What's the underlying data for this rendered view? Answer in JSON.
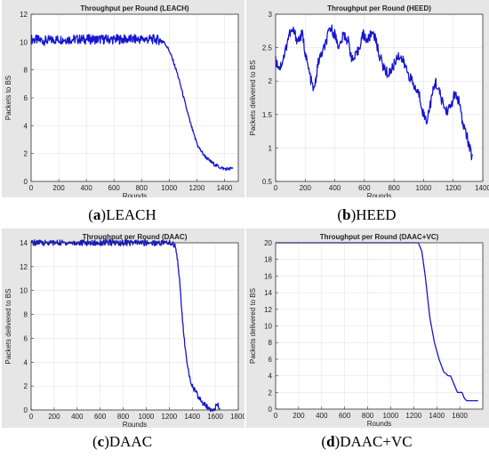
{
  "charts": [
    {
      "type": "line",
      "title": "Throughput per Round (LEACH)",
      "xlabel": "Rounds",
      "ylabel": "Packets to BS",
      "xlim": [
        0,
        1500
      ],
      "ylim": [
        0,
        12
      ],
      "xticks": [
        0,
        200,
        400,
        600,
        800,
        1000,
        1200,
        1400
      ],
      "yticks": [
        0,
        2,
        4,
        6,
        8,
        10,
        12
      ],
      "grid": true,
      "line_color": "#1515d0",
      "caption_letter": "a",
      "caption_text": "LEACH",
      "series_keypoints": [
        [
          0,
          10.2
        ],
        [
          100,
          10.1
        ],
        [
          200,
          10.2
        ],
        [
          300,
          10.2
        ],
        [
          400,
          10.2
        ],
        [
          500,
          10.2
        ],
        [
          600,
          10.2
        ],
        [
          700,
          10.2
        ],
        [
          800,
          10.2
        ],
        [
          900,
          10.2
        ],
        [
          950,
          10.1
        ],
        [
          970,
          9.9
        ],
        [
          1000,
          9.4
        ],
        [
          1030,
          8.6
        ],
        [
          1060,
          7.7
        ],
        [
          1090,
          6.6
        ],
        [
          1120,
          5.4
        ],
        [
          1150,
          4.3
        ],
        [
          1180,
          3.3
        ],
        [
          1210,
          2.5
        ],
        [
          1250,
          1.9
        ],
        [
          1290,
          1.5
        ],
        [
          1330,
          1.2
        ],
        [
          1370,
          1.0
        ],
        [
          1400,
          0.9
        ],
        [
          1440,
          0.9
        ],
        [
          1460,
          0.95
        ]
      ],
      "noise_until": 960,
      "noise_amp": 0.35,
      "noise_amp_after": 0.12
    },
    {
      "type": "line",
      "title": "Throughput per Round (HEED)",
      "xlabel": "Rounds",
      "ylabel": "Packets delivered to BS",
      "xlim": [
        0,
        1400
      ],
      "ylim": [
        0.5,
        3
      ],
      "xticks": [
        0,
        200,
        400,
        600,
        800,
        1000,
        1200,
        1400
      ],
      "yticks": [
        0.5,
        1,
        1.5,
        2,
        2.5,
        3
      ],
      "grid": true,
      "line_color": "#1515d0",
      "caption_letter": "b",
      "caption_text": "HEED",
      "series_keypoints": [
        [
          0,
          2.3
        ],
        [
          30,
          2.2
        ],
        [
          60,
          2.4
        ],
        [
          90,
          2.7
        ],
        [
          120,
          2.75
        ],
        [
          150,
          2.6
        ],
        [
          180,
          2.7
        ],
        [
          210,
          2.3
        ],
        [
          240,
          2.0
        ],
        [
          260,
          1.85
        ],
        [
          290,
          2.3
        ],
        [
          330,
          2.5
        ],
        [
          370,
          2.8
        ],
        [
          400,
          2.7
        ],
        [
          430,
          2.5
        ],
        [
          460,
          2.7
        ],
        [
          490,
          2.6
        ],
        [
          520,
          2.3
        ],
        [
          550,
          2.4
        ],
        [
          590,
          2.7
        ],
        [
          620,
          2.6
        ],
        [
          660,
          2.75
        ],
        [
          700,
          2.4
        ],
        [
          730,
          2.2
        ],
        [
          760,
          2.1
        ],
        [
          790,
          2.2
        ],
        [
          830,
          2.4
        ],
        [
          860,
          2.3
        ],
        [
          900,
          2.1
        ],
        [
          940,
          1.9
        ],
        [
          970,
          1.8
        ],
        [
          1000,
          1.5
        ],
        [
          1020,
          1.4
        ],
        [
          1050,
          1.7
        ],
        [
          1080,
          2.0
        ],
        [
          1110,
          1.8
        ],
        [
          1150,
          1.55
        ],
        [
          1180,
          1.6
        ],
        [
          1210,
          1.8
        ],
        [
          1240,
          1.7
        ],
        [
          1260,
          1.4
        ],
        [
          1290,
          1.2
        ],
        [
          1310,
          1.0
        ],
        [
          1330,
          0.85
        ]
      ],
      "noise_until": 1340,
      "noise_amp": 0.08,
      "noise_amp_after": 0.05
    },
    {
      "type": "line",
      "title": "Throughput per Round (DAAC)",
      "xlabel": "Rounds",
      "ylabel": "Packets delivered to BS",
      "xlim": [
        0,
        1800
      ],
      "ylim": [
        0,
        14
      ],
      "xticks": [
        0,
        200,
        400,
        600,
        800,
        1000,
        1200,
        1400,
        1600,
        1800
      ],
      "yticks": [
        0,
        2,
        4,
        6,
        8,
        10,
        12,
        14
      ],
      "grid": true,
      "line_color": "#1515d0",
      "caption_letter": "c",
      "caption_text": "DAAC",
      "series_keypoints": [
        [
          0,
          14
        ],
        [
          1200,
          14
        ],
        [
          1240,
          13.9
        ],
        [
          1260,
          13.5
        ],
        [
          1280,
          12
        ],
        [
          1300,
          9.5
        ],
        [
          1320,
          7
        ],
        [
          1340,
          5
        ],
        [
          1360,
          3.5
        ],
        [
          1380,
          2.7
        ],
        [
          1400,
          2
        ],
        [
          1430,
          1.5
        ],
        [
          1460,
          1
        ],
        [
          1490,
          0.6
        ],
        [
          1520,
          0.3
        ],
        [
          1560,
          0.1
        ],
        [
          1600,
          0.2
        ],
        [
          1620,
          0.4
        ],
        [
          1640,
          0.1
        ]
      ],
      "noise_until": 0,
      "noise_amp": 0,
      "noise_amp_after": 0.25
    },
    {
      "type": "line",
      "title": "Throughput per Round (DAAC+VC)",
      "xlabel": "Rounds",
      "ylabel": "Packets delivered to BS",
      "xlim": [
        0,
        1800
      ],
      "ylim": [
        0,
        20
      ],
      "xticks": [
        0,
        200,
        400,
        600,
        800,
        1000,
        1200,
        1400,
        1600
      ],
      "yticks": [
        0,
        2,
        4,
        6,
        8,
        10,
        12,
        14,
        16,
        18,
        20
      ],
      "grid": true,
      "line_color": "#1515d0",
      "caption_letter": "d",
      "caption_text": "DAAC+VC",
      "series_keypoints": [
        [
          0,
          20
        ],
        [
          1240,
          20
        ],
        [
          1270,
          19
        ],
        [
          1300,
          16
        ],
        [
          1340,
          11
        ],
        [
          1380,
          8
        ],
        [
          1420,
          6
        ],
        [
          1460,
          4.5
        ],
        [
          1500,
          4
        ],
        [
          1520,
          4
        ],
        [
          1550,
          3
        ],
        [
          1580,
          2
        ],
        [
          1620,
          2
        ],
        [
          1640,
          1.3
        ],
        [
          1660,
          1
        ],
        [
          1700,
          1
        ],
        [
          1760,
          1
        ]
      ],
      "noise_until": 0,
      "noise_amp": 0,
      "noise_amp_after": 0
    }
  ]
}
